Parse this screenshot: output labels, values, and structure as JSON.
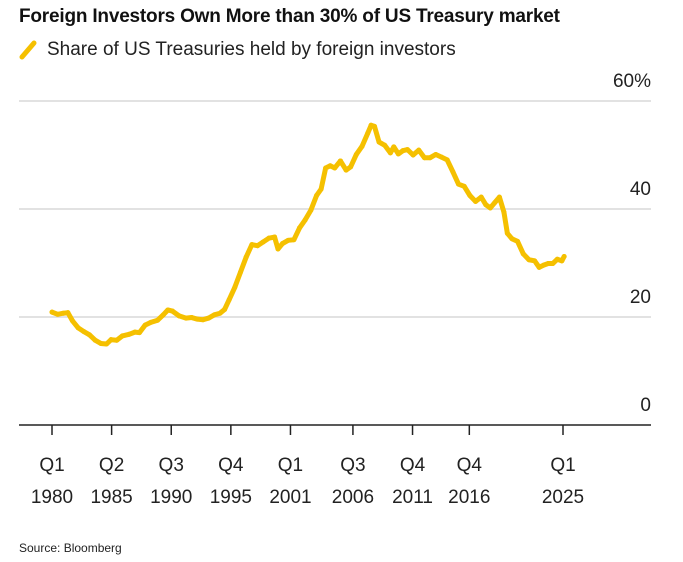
{
  "title": "Foreign Investors Own More than 30% of US Treasury market",
  "source": "Source: Bloomberg",
  "colors": {
    "series": "#F5C000",
    "grid": "#d9d9d9",
    "axis": "#222222"
  },
  "chart_data": {
    "type": "line",
    "title": "Foreign Investors Own More than 30% of US Treasury market",
    "xlabel": "",
    "ylabel": "",
    "xlim": [
      1980.0,
      2029.5
    ],
    "ylim": [
      0,
      60
    ],
    "y_unit_suffix": "%",
    "y_ticks": [
      0,
      20,
      40,
      60
    ],
    "y_tick_labels": [
      "0",
      "20",
      "40",
      "60%"
    ],
    "grid": true,
    "legend_position": "top-left",
    "x_ticks": [
      {
        "x": 1980.0,
        "quarter": "Q1",
        "year": "1980"
      },
      {
        "x": 1985.25,
        "quarter": "Q2",
        "year": "1985"
      },
      {
        "x": 1990.5,
        "quarter": "Q3",
        "year": "1990"
      },
      {
        "x": 1995.75,
        "quarter": "Q4",
        "year": "1995"
      },
      {
        "x": 2001.0,
        "quarter": "Q1",
        "year": "2001"
      },
      {
        "x": 2006.5,
        "quarter": "Q3",
        "year": "2006"
      },
      {
        "x": 2011.75,
        "quarter": "Q4",
        "year": "2011"
      },
      {
        "x": 2016.75,
        "quarter": "Q4",
        "year": "2016"
      },
      {
        "x": 2025.0,
        "quarter": "Q1",
        "year": "2025"
      }
    ],
    "series": [
      {
        "name": "Share of US Treasuries held by foreign investors",
        "points": [
          [
            1980.0,
            20.9
          ],
          [
            1980.5,
            20.5
          ],
          [
            1981.0,
            20.7
          ],
          [
            1981.4,
            20.8
          ],
          [
            1981.8,
            19.3
          ],
          [
            1982.3,
            18.0
          ],
          [
            1982.8,
            17.3
          ],
          [
            1983.3,
            16.7
          ],
          [
            1983.8,
            15.7
          ],
          [
            1984.3,
            15.1
          ],
          [
            1984.8,
            15.0
          ],
          [
            1985.2,
            15.8
          ],
          [
            1985.7,
            15.7
          ],
          [
            1986.2,
            16.5
          ],
          [
            1986.8,
            16.8
          ],
          [
            1987.3,
            17.2
          ],
          [
            1987.7,
            17.1
          ],
          [
            1988.2,
            18.5
          ],
          [
            1988.7,
            19.0
          ],
          [
            1989.3,
            19.4
          ],
          [
            1989.8,
            20.4
          ],
          [
            1990.2,
            21.3
          ],
          [
            1990.6,
            21.1
          ],
          [
            1991.2,
            20.2
          ],
          [
            1991.8,
            19.8
          ],
          [
            1992.3,
            19.9
          ],
          [
            1992.8,
            19.6
          ],
          [
            1993.3,
            19.5
          ],
          [
            1993.8,
            19.8
          ],
          [
            1994.3,
            20.4
          ],
          [
            1994.8,
            20.7
          ],
          [
            1995.2,
            21.4
          ],
          [
            1995.6,
            23.2
          ],
          [
            1996.1,
            25.5
          ],
          [
            1996.6,
            28.3
          ],
          [
            1997.1,
            31.1
          ],
          [
            1997.6,
            33.4
          ],
          [
            1998.1,
            33.2
          ],
          [
            1998.6,
            33.9
          ],
          [
            1999.1,
            34.6
          ],
          [
            1999.6,
            34.8
          ],
          [
            1999.9,
            32.6
          ],
          [
            2000.3,
            33.6
          ],
          [
            2000.8,
            34.2
          ],
          [
            2001.3,
            34.3
          ],
          [
            2001.8,
            36.5
          ],
          [
            2002.3,
            38.0
          ],
          [
            2002.8,
            39.8
          ],
          [
            2003.3,
            42.5
          ],
          [
            2003.7,
            43.7
          ],
          [
            2004.1,
            47.6
          ],
          [
            2004.5,
            48.0
          ],
          [
            2004.9,
            47.6
          ],
          [
            2005.4,
            48.9
          ],
          [
            2005.9,
            47.2
          ],
          [
            2006.3,
            47.8
          ],
          [
            2006.8,
            50.1
          ],
          [
            2007.3,
            51.6
          ],
          [
            2007.8,
            54.0
          ],
          [
            2008.1,
            55.5
          ],
          [
            2008.4,
            55.3
          ],
          [
            2008.8,
            52.4
          ],
          [
            2009.3,
            51.8
          ],
          [
            2009.8,
            50.4
          ],
          [
            2010.1,
            51.5
          ],
          [
            2010.5,
            50.2
          ],
          [
            2010.9,
            50.8
          ],
          [
            2011.3,
            51.0
          ],
          [
            2011.8,
            50.0
          ],
          [
            2012.3,
            50.9
          ],
          [
            2012.8,
            49.5
          ],
          [
            2013.3,
            49.5
          ],
          [
            2013.8,
            50.1
          ],
          [
            2014.3,
            49.6
          ],
          [
            2014.8,
            49.1
          ],
          [
            2015.3,
            46.9
          ],
          [
            2015.8,
            44.6
          ],
          [
            2016.3,
            44.2
          ],
          [
            2016.8,
            42.5
          ],
          [
            2017.3,
            41.4
          ],
          [
            2017.8,
            42.2
          ],
          [
            2018.2,
            40.8
          ],
          [
            2018.6,
            40.2
          ],
          [
            2019.0,
            41.2
          ],
          [
            2019.4,
            42.2
          ],
          [
            2019.8,
            39.4
          ],
          [
            2020.1,
            35.5
          ],
          [
            2020.5,
            34.5
          ],
          [
            2021.0,
            34.0
          ],
          [
            2021.5,
            31.7
          ],
          [
            2022.0,
            30.6
          ],
          [
            2022.5,
            30.4
          ],
          [
            2022.9,
            29.2
          ],
          [
            2023.3,
            29.6
          ],
          [
            2023.7,
            29.9
          ],
          [
            2024.1,
            29.9
          ],
          [
            2024.5,
            30.7
          ],
          [
            2024.9,
            30.4
          ],
          [
            2025.1,
            31.2
          ]
        ]
      }
    ]
  }
}
